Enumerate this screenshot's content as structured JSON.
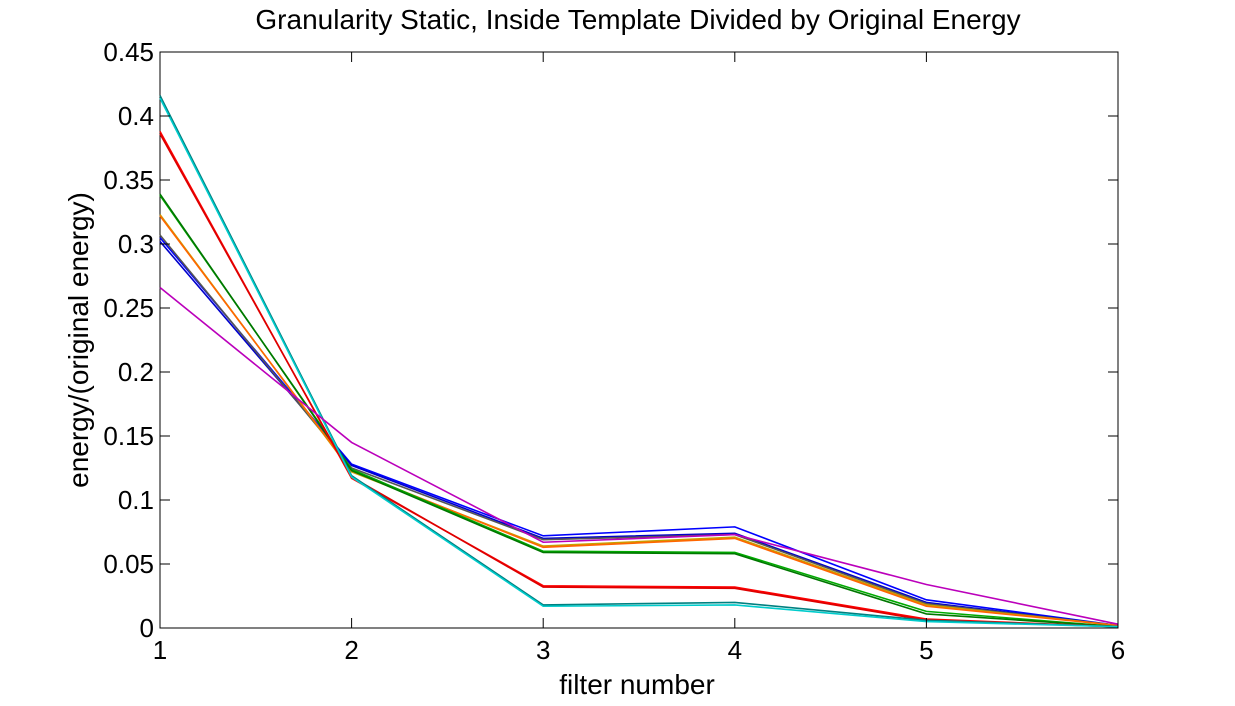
{
  "chart_data": {
    "type": "line",
    "title": "Granularity Static, Inside Template Divided by Original Energy",
    "xlabel": "filter number",
    "ylabel": "energy/(original energy)",
    "xlim": [
      1,
      6
    ],
    "ylim": [
      0,
      0.45
    ],
    "x_ticks": [
      1,
      2,
      3,
      4,
      5,
      6
    ],
    "x_tick_labels": [
      "1",
      "2",
      "3",
      "4",
      "5",
      "6"
    ],
    "y_ticks": [
      0,
      0.05,
      0.1,
      0.15,
      0.2,
      0.25,
      0.3,
      0.35,
      0.4,
      0.45
    ],
    "y_tick_labels": [
      "0",
      "0.05",
      "0.1",
      "0.15",
      "0.2",
      "0.25",
      "0.3",
      "0.35",
      "0.4",
      "0.45"
    ],
    "grid": false,
    "legend": "none",
    "x": [
      1,
      2,
      3,
      4,
      5,
      6
    ],
    "series": [
      {
        "color": "#0000ff",
        "values": [
          0.305,
          0.128,
          0.072,
          0.079,
          0.022,
          0.002
        ]
      },
      {
        "color": "#0000cc",
        "values": [
          0.302,
          0.127,
          0.07,
          0.074,
          0.02,
          0.002
        ]
      },
      {
        "color": "#555555",
        "values": [
          0.307,
          0.125,
          0.069,
          0.073,
          0.019,
          0.002
        ]
      },
      {
        "color": "#c8a000",
        "values": [
          0.323,
          0.122,
          0.064,
          0.071,
          0.018,
          0.002
        ]
      },
      {
        "color": "#ff6600",
        "values": [
          0.322,
          0.123,
          0.063,
          0.07,
          0.017,
          0.002
        ]
      },
      {
        "color": "#00aa00",
        "values": [
          0.338,
          0.124,
          0.06,
          0.059,
          0.013,
          0.001
        ]
      },
      {
        "color": "#007700",
        "values": [
          0.339,
          0.123,
          0.059,
          0.058,
          0.011,
          0.001
        ]
      },
      {
        "color": "#ff0000",
        "values": [
          0.388,
          0.117,
          0.033,
          0.032,
          0.007,
          0.001
        ]
      },
      {
        "color": "#dd0000",
        "values": [
          0.386,
          0.118,
          0.032,
          0.031,
          0.006,
          0.001
        ]
      },
      {
        "color": "#008080",
        "values": [
          0.416,
          0.119,
          0.018,
          0.02,
          0.006,
          0.001
        ]
      },
      {
        "color": "#00cccc",
        "values": [
          0.414,
          0.118,
          0.017,
          0.018,
          0.005,
          0.001
        ]
      },
      {
        "color": "#bb00bb",
        "values": [
          0.266,
          0.145,
          0.067,
          0.073,
          0.034,
          0.003
        ]
      }
    ]
  }
}
